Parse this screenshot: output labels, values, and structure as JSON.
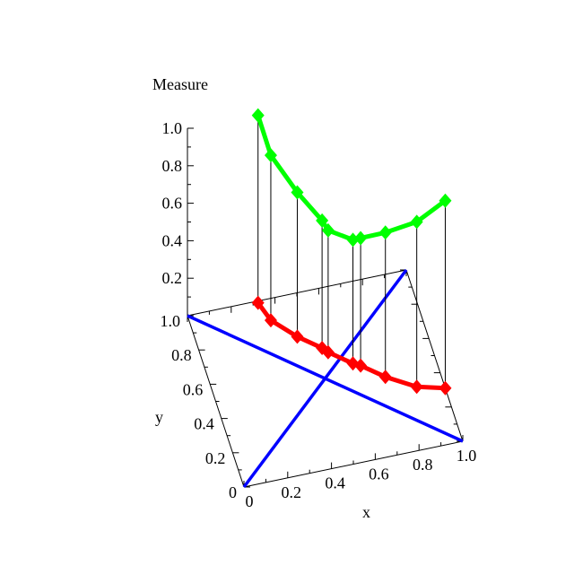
{
  "chart_data": {
    "type": "3d-line",
    "zlabel": "Measure",
    "xlabel": "x",
    "ylabel": "y",
    "xlim": [
      0,
      1
    ],
    "ylim": [
      0,
      1
    ],
    "zlim": [
      0,
      1
    ],
    "x_ticks": [
      "0",
      "0.2",
      "0.4",
      "0.6",
      "0.8",
      "1.0"
    ],
    "y_ticks": [
      "0",
      "0.2",
      "0.4",
      "0.6",
      "0.8",
      "1.0"
    ],
    "z_ticks": [
      "0.2",
      "0.4",
      "0.6",
      "0.8",
      "1.0"
    ],
    "grid": false,
    "colors": {
      "measure": "#00ff00",
      "floor_path": "#ff0000",
      "diagonals": "#0000ff",
      "drop_lines": "#000000"
    },
    "diagonals": [
      [
        [
          0,
          0
        ],
        [
          1,
          1
        ]
      ],
      [
        [
          0,
          1
        ],
        [
          1,
          0
        ]
      ]
    ],
    "points": [
      {
        "x": 0.32,
        "y": 0.99,
        "z": 1.0
      },
      {
        "x": 0.35,
        "y": 0.88,
        "z": 0.88
      },
      {
        "x": 0.44,
        "y": 0.76,
        "z": 0.77
      },
      {
        "x": 0.53,
        "y": 0.67,
        "z": 0.68
      },
      {
        "x": 0.55,
        "y": 0.64,
        "z": 0.65
      },
      {
        "x": 0.64,
        "y": 0.55,
        "z": 0.66
      },
      {
        "x": 0.67,
        "y": 0.53,
        "z": 0.68
      },
      {
        "x": 0.76,
        "y": 0.44,
        "z": 0.77
      },
      {
        "x": 0.88,
        "y": 0.35,
        "z": 0.88
      },
      {
        "x": 1.0,
        "y": 0.31,
        "z": 1.0
      }
    ]
  }
}
